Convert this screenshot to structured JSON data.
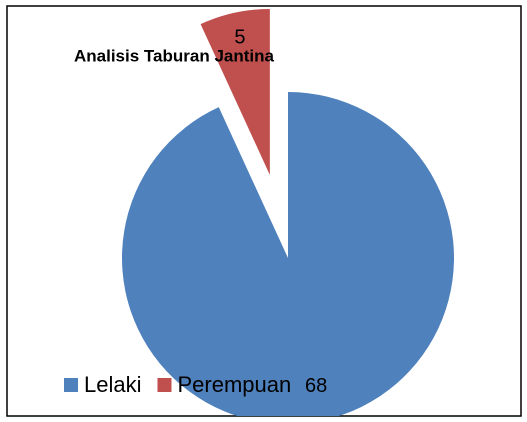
{
  "chart_data": {
    "type": "pie",
    "title": "Analisis Taburan Jantina",
    "categories": [
      "Lelaki",
      "Perempuan"
    ],
    "values": [
      68,
      5
    ],
    "colors": [
      "#4f81bd",
      "#c0504d"
    ],
    "legend": "bottom-left"
  }
}
